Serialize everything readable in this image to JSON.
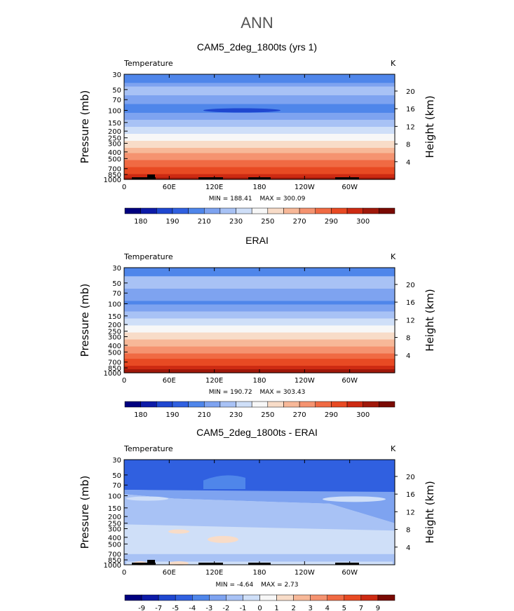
{
  "page_title": "ANN",
  "chart_data": [
    {
      "type": "heatmap",
      "title": "CAM5_2deg_1800ts (yrs 1)",
      "left_label": "Temperature",
      "units": "K",
      "ylabel": "Pressure  (mb)",
      "ylabel_right": "Height  (km)",
      "y_ticks": [
        "30",
        "50",
        "70",
        "100",
        "150",
        "200",
        "250",
        "300",
        "400",
        "500",
        "700",
        "850",
        "1000"
      ],
      "y_right_ticks": [
        "20",
        "16",
        "12",
        "8",
        "4"
      ],
      "x_ticks": [
        "0",
        "60E",
        "120E",
        "180",
        "120W",
        "60W"
      ],
      "min_label": "MIN = 188.41",
      "max_label": "MAX = 300.09",
      "colorbar_labels": [
        "180",
        "190",
        "210",
        "230",
        "250",
        "270",
        "290",
        "300"
      ],
      "colors": [
        "#00007f",
        "#0d1ba8",
        "#1f47d0",
        "#3060e0",
        "#4f86ea",
        "#7ea3f0",
        "#a8c2f5",
        "#cfdff8",
        "#f7f7f7",
        "#f8dcc8",
        "#f7b898",
        "#f59370",
        "#f06a43",
        "#e84a23",
        "#cd2a12",
        "#a0180a",
        "#7a0a03"
      ],
      "layers": [
        {
          "p": 30,
          "t": 208
        },
        {
          "p": 50,
          "t": 212
        },
        {
          "p": 70,
          "t": 205
        },
        {
          "p": 100,
          "t": 196
        },
        {
          "p": 150,
          "t": 208
        },
        {
          "p": 200,
          "t": 218
        },
        {
          "p": 250,
          "t": 228
        },
        {
          "p": 300,
          "t": 238
        },
        {
          "p": 400,
          "t": 253
        },
        {
          "p": 500,
          "t": 265
        },
        {
          "p": 700,
          "t": 280
        },
        {
          "p": 850,
          "t": 290
        },
        {
          "p": 1000,
          "t": 297
        }
      ]
    },
    {
      "type": "heatmap",
      "title": "ERAI",
      "left_label": "Temperature",
      "units": "K",
      "ylabel": "Pressure  (mb)",
      "ylabel_right": "Height  (km)",
      "y_ticks": [
        "30",
        "50",
        "70",
        "100",
        "150",
        "200",
        "250",
        "300",
        "400",
        "500",
        "700",
        "850",
        "1000"
      ],
      "y_right_ticks": [
        "20",
        "16",
        "12",
        "8",
        "4"
      ],
      "x_ticks": [
        "0",
        "60E",
        "120E",
        "180",
        "120W",
        "60W"
      ],
      "min_label": "MIN = 190.72",
      "max_label": "MAX = 303.43",
      "colorbar_labels": [
        "180",
        "190",
        "210",
        "230",
        "250",
        "270",
        "290",
        "300"
      ],
      "colors": [
        "#00007f",
        "#0d1ba8",
        "#1f47d0",
        "#3060e0",
        "#4f86ea",
        "#7ea3f0",
        "#a8c2f5",
        "#cfdff8",
        "#f7f7f7",
        "#f8dcc8",
        "#f7b898",
        "#f59370",
        "#f06a43",
        "#e84a23",
        "#cd2a12",
        "#a0180a",
        "#7a0a03"
      ]
    },
    {
      "type": "heatmap",
      "title": "CAM5_2deg_1800ts - ERAI",
      "left_label": "Temperature",
      "units": "K",
      "ylabel": "Pressure  (mb)",
      "ylabel_right": "Height  (km)",
      "y_ticks": [
        "30",
        "50",
        "70",
        "100",
        "150",
        "200",
        "250",
        "300",
        "400",
        "500",
        "700",
        "850",
        "1000"
      ],
      "y_right_ticks": [
        "20",
        "16",
        "12",
        "8",
        "4"
      ],
      "x_ticks": [
        "0",
        "60E",
        "120E",
        "180",
        "120W",
        "60W"
      ],
      "min_label": "MIN = -4.64",
      "max_label": "MAX = 2.73",
      "colorbar_labels": [
        "-9",
        "-7",
        "-5",
        "-4",
        "-3",
        "-2",
        "-1",
        "0",
        "1",
        "2",
        "3",
        "4",
        "5",
        "7",
        "9"
      ],
      "colors": [
        "#00007f",
        "#0d1ba8",
        "#1f47d0",
        "#3060e0",
        "#4f86ea",
        "#7ea3f0",
        "#a8c2f5",
        "#cfdff8",
        "#f7f7f7",
        "#f8dcc8",
        "#f7b898",
        "#f59370",
        "#f06a43",
        "#e84a23",
        "#cd2a12",
        "#7a0a03"
      ]
    }
  ]
}
